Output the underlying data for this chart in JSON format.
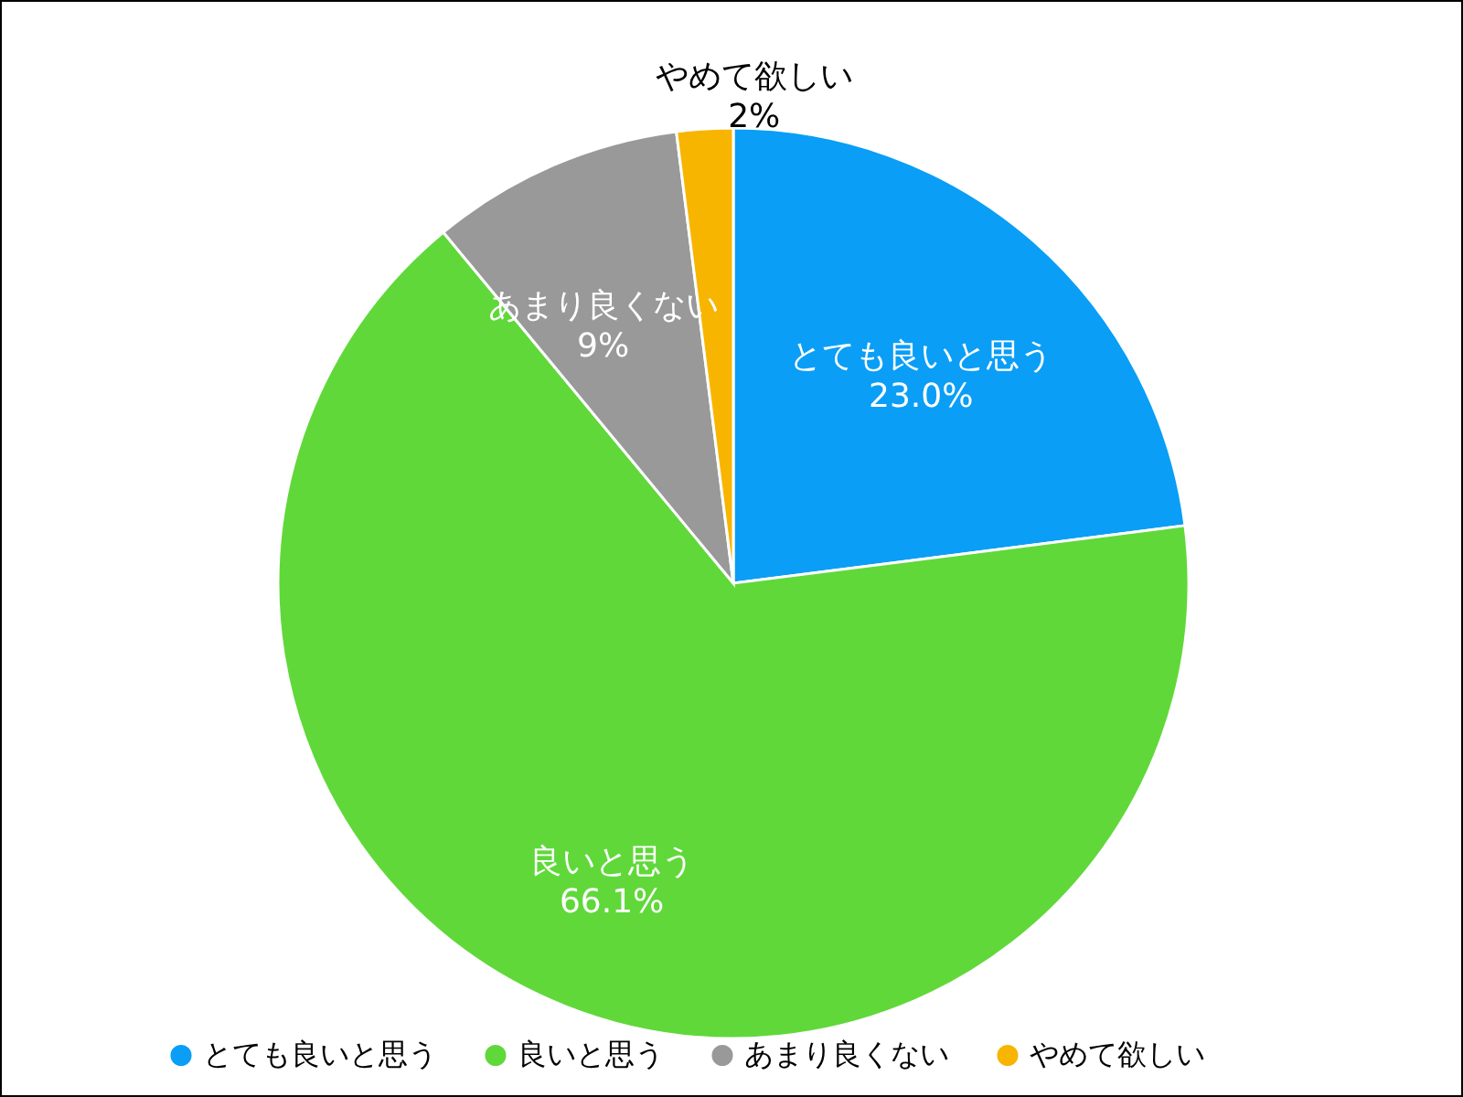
{
  "chart_data": {
    "type": "pie",
    "categories": [
      "とても良いと思う",
      "良いと思う",
      "あまり良くない",
      "やめて欲しい"
    ],
    "values": [
      23.0,
      66.1,
      9,
      2
    ],
    "value_labels": [
      "23.0%",
      "66.1%",
      "9%",
      "2%"
    ],
    "colors": [
      "#0a9ef6",
      "#60d83a",
      "#999999",
      "#f8b500"
    ],
    "legend": "bottom"
  }
}
